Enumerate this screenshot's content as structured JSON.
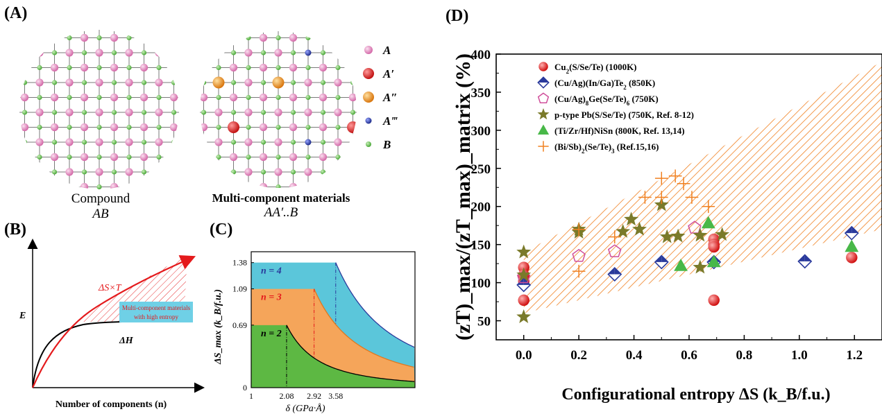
{
  "panels": {
    "A": {
      "letter": "(A)",
      "compound_caption": "Compound",
      "compound_formula": "AB",
      "multi_caption": "Multi-component materials",
      "multi_formula": "AA′..B",
      "legend": [
        {
          "label": "A",
          "color": "#e27bb6"
        },
        {
          "label": "A′",
          "color": "#e41a1c"
        },
        {
          "label": "A″",
          "color": "#f0901c"
        },
        {
          "label": "A‴",
          "color": "#2a3a9c"
        },
        {
          "label": "B",
          "color": "#5cbf49"
        }
      ]
    },
    "B": {
      "letter": "(B)",
      "ylabel": "E",
      "xlabel": "Number of components (n)",
      "curve1_label": "ΔS×T",
      "curve2_label": "ΔH",
      "box_line1": "Multi-component materials",
      "box_line2": "with high entropy"
    },
    "C": {
      "letter": "(C)",
      "yticks": [
        "1.38",
        "1.09",
        "0.69",
        "0"
      ],
      "xticks": [
        "1",
        "2.08",
        "2.92",
        "3.58"
      ],
      "ylabel": "ΔS_max (k_B/f.u.)",
      "xlabel": "δ (GPa·Å)",
      "regions": [
        {
          "label": "n = 4",
          "color": "#5bc6da",
          "label_color": "#2a3a9c"
        },
        {
          "label": "n = 3",
          "color": "#f5a55a",
          "label_color": "#e41a1c"
        },
        {
          "label": "n = 2",
          "color": "#5db843",
          "label_color": "#000000"
        }
      ]
    },
    "D": {
      "letter": "(D)"
    }
  },
  "chart_data": {
    "type": "scatter",
    "xlabel": "Configurational entropy ΔS (k_B/f.u.)",
    "ylabel": "(zT)_max/(zT_max)_matrix (%)",
    "xlim": [
      -0.1,
      1.3
    ],
    "ylim": [
      25,
      400
    ],
    "xticks": [
      "0.0",
      "0.2",
      "0.4",
      "0.6",
      "0.8",
      "1.0",
      "1.2"
    ],
    "yticks": [
      "50",
      "100",
      "150",
      "200",
      "250",
      "300",
      "350",
      "400"
    ],
    "shaded_band": {
      "lower": [
        [
          0,
          60
        ],
        [
          1.3,
          170
        ]
      ],
      "upper": [
        [
          0,
          140
        ],
        [
          1.3,
          390
        ]
      ],
      "color": "#f08020"
    },
    "series": [
      {
        "name": "Cu2(S/Se/Te) (1000K)",
        "marker": "sphere-red",
        "color": "#e41a1c",
        "points": [
          [
            0,
            120
          ],
          [
            0,
            110
          ],
          [
            0,
            102
          ],
          [
            0,
            77
          ],
          [
            0.69,
            157
          ],
          [
            0.69,
            150
          ],
          [
            0.69,
            147
          ],
          [
            0.69,
            77
          ],
          [
            1.19,
            133
          ]
        ]
      },
      {
        "name": "(Cu/Ag)(In/Ga)Te2 (850K)",
        "marker": "diamond-half-blue",
        "color": "#2a3a9c",
        "points": [
          [
            0,
            97
          ],
          [
            0.33,
            111
          ],
          [
            0.5,
            127
          ],
          [
            0.69,
            127
          ],
          [
            1.02,
            128
          ],
          [
            1.19,
            165
          ]
        ]
      },
      {
        "name": "(Cu/Ag)8Ge(Se/Te)6 (750K)",
        "marker": "pentagon-open",
        "color": "#d04f9b",
        "points": [
          [
            0,
            107
          ],
          [
            0.2,
            135
          ],
          [
            0.33,
            141
          ],
          [
            0.62,
            172
          ]
        ]
      },
      {
        "name": "p-type Pb(S/Se/Te) (750K, Ref. 8-12)",
        "marker": "star",
        "color": "#7a7a2a",
        "points": [
          [
            0,
            140
          ],
          [
            0,
            110
          ],
          [
            0,
            55
          ],
          [
            0.2,
            170
          ],
          [
            0.2,
            166
          ],
          [
            0.36,
            167
          ],
          [
            0.39,
            183
          ],
          [
            0.42,
            170
          ],
          [
            0.5,
            202
          ],
          [
            0.52,
            160
          ],
          [
            0.56,
            161
          ],
          [
            0.64,
            162
          ],
          [
            0.64,
            120
          ],
          [
            0.72,
            163
          ]
        ]
      },
      {
        "name": "(Ti/Zr/Hf)NiSn (800K, Ref. 13,14)",
        "marker": "triangle",
        "color": "#48b848",
        "points": [
          [
            0.57,
            122
          ],
          [
            0.67,
            178
          ],
          [
            0.69,
            127
          ],
          [
            1.19,
            147
          ]
        ]
      },
      {
        "name": "(Bi/Sb)2(Se/Te)3 (Ref.15,16)",
        "marker": "plus",
        "color": "#f08020",
        "points": [
          [
            0.2,
            115
          ],
          [
            0.33,
            160
          ],
          [
            0.44,
            212
          ],
          [
            0.5,
            237
          ],
          [
            0.5,
            212
          ],
          [
            0.55,
            240
          ],
          [
            0.58,
            230
          ],
          [
            0.61,
            212
          ],
          [
            0.67,
            200
          ],
          [
            0.2,
            170
          ]
        ]
      }
    ],
    "legend_labels": [
      {
        "base": "Cu",
        "sub1": "2",
        "rest": "(S/Se/Te) (1000K)"
      },
      {
        "base": "(Cu/Ag)(In/Ga)Te",
        "sub1": "2",
        "rest": " (850K)"
      },
      {
        "base": "(Cu/Ag)",
        "sub1": "8",
        "rest": "Ge(Se/Te)",
        "sub2": "6",
        "rest2": " (750K)"
      },
      {
        "base": "p-type Pb(S/Se/Te) (750K, Ref. 8-12)"
      },
      {
        "base": "(Ti/Zr/Hf)NiSn (800K, Ref. 13,14)"
      },
      {
        "base": "(Bi/Sb)",
        "sub1": "2",
        "rest": "(Se/Te)",
        "sub2": "3",
        "rest2": " (Ref.15,16)"
      }
    ]
  }
}
